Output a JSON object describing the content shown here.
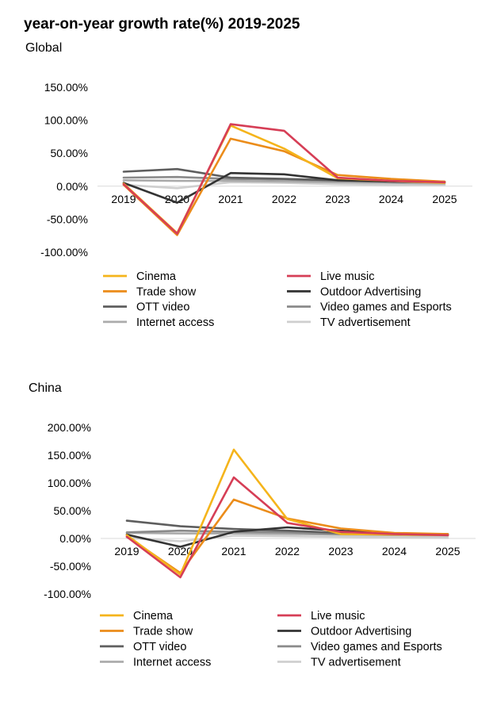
{
  "title": "year-on-year growth rate(%) 2019-2025",
  "series_colors": {
    "Cinema": "#F5B41B",
    "Live music": "#D63E56",
    "Trade show": "#EB8C1A",
    "Outdoor Advertising": "#333333",
    "OTT video": "#5E5E5E",
    "Video games and Esports": "#8A8A8A",
    "Internet access": "#ABABAB",
    "TV advertisement": "#CFCFCF"
  },
  "chart_data": [
    {
      "type": "line",
      "title": "Global",
      "x": [
        "2019",
        "2020",
        "2021",
        "2022",
        "2023",
        "2024",
        "2025"
      ],
      "yticks": [
        "150.00%",
        "100.00%",
        "50.00%",
        "0.00%",
        "-50.00%",
        "-100.00%"
      ],
      "ylim": [
        -100,
        150
      ],
      "grid": false,
      "legend_position": "bottom",
      "series": [
        {
          "name": "Cinema",
          "values": [
            4,
            -71,
            92,
            57,
            12,
            8,
            5
          ]
        },
        {
          "name": "Live music",
          "values": [
            3,
            -72,
            94,
            84,
            13,
            8,
            6
          ]
        },
        {
          "name": "Trade show",
          "values": [
            2,
            -74,
            72,
            53,
            17,
            11,
            7
          ]
        },
        {
          "name": "Outdoor Advertising",
          "values": [
            5,
            -25,
            20,
            18,
            9,
            7,
            6
          ]
        },
        {
          "name": "OTT video",
          "values": [
            22,
            26,
            13,
            11,
            9,
            8,
            7
          ]
        },
        {
          "name": "Video games and Esports",
          "values": [
            13,
            14,
            11,
            10,
            8,
            7,
            6
          ]
        },
        {
          "name": "Internet access",
          "values": [
            9,
            8,
            8,
            7,
            6,
            5,
            4
          ]
        },
        {
          "name": "TV advertisement",
          "values": [
            2,
            -3,
            6,
            5,
            3,
            2,
            2
          ]
        }
      ]
    },
    {
      "type": "line",
      "title": "China",
      "x": [
        "2019",
        "2020",
        "2021",
        "2022",
        "2023",
        "2024",
        "2025"
      ],
      "yticks": [
        "200.00%",
        "150.00%",
        "100.00%",
        "50.00%",
        "0.00%",
        "-50.00%",
        "-100.00%"
      ],
      "ylim": [
        -100,
        200
      ],
      "grid": false,
      "legend_position": "bottom",
      "series": [
        {
          "name": "Cinema",
          "values": [
            6,
            -65,
            160,
            35,
            8,
            7,
            6
          ]
        },
        {
          "name": "Live music",
          "values": [
            3,
            -70,
            110,
            28,
            12,
            8,
            6
          ]
        },
        {
          "name": "Trade show",
          "values": [
            4,
            -62,
            70,
            36,
            18,
            10,
            8
          ]
        },
        {
          "name": "Outdoor Advertising",
          "values": [
            7,
            -15,
            12,
            20,
            14,
            8,
            7
          ]
        },
        {
          "name": "OTT video",
          "values": [
            32,
            22,
            17,
            14,
            10,
            8,
            8
          ]
        },
        {
          "name": "Video games and Esports",
          "values": [
            11,
            14,
            12,
            11,
            8,
            7,
            6
          ]
        },
        {
          "name": "Internet access",
          "values": [
            10,
            9,
            9,
            8,
            7,
            6,
            5
          ]
        },
        {
          "name": "TV advertisement",
          "values": [
            1,
            -5,
            5,
            4,
            3,
            2,
            1
          ]
        }
      ]
    }
  ]
}
